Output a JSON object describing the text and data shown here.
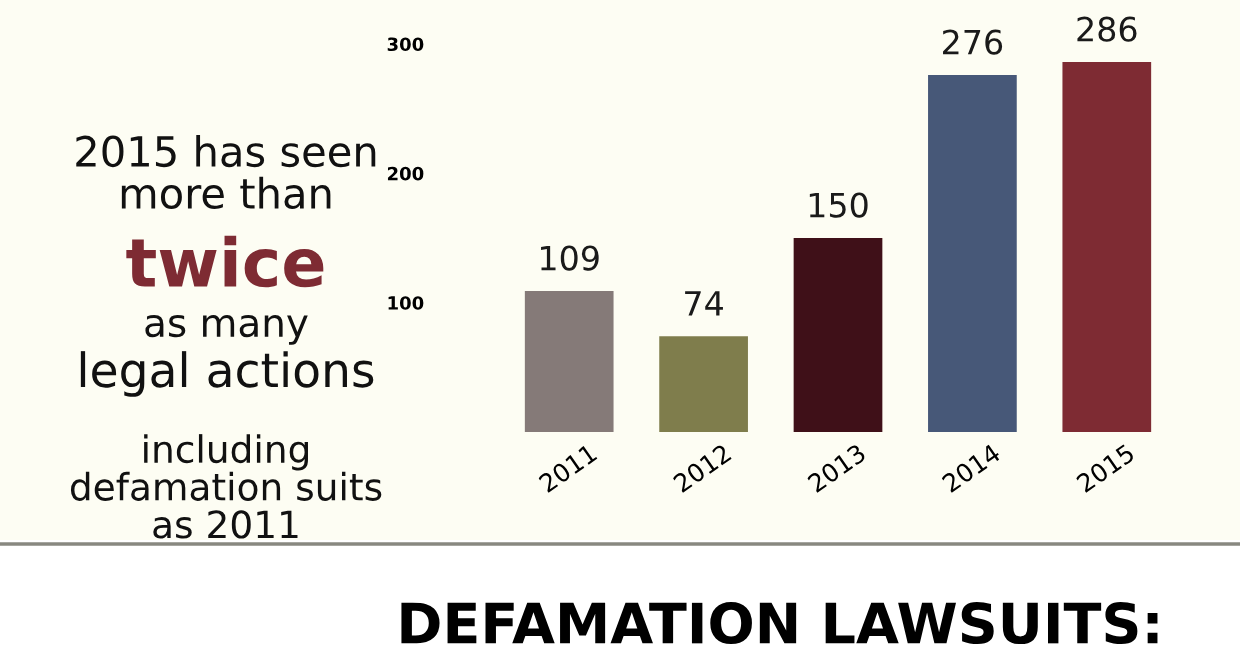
{
  "chart_data": {
    "type": "bar",
    "categories": [
      "2011",
      "2012",
      "2013",
      "2014",
      "2015"
    ],
    "values": [
      109,
      74,
      150,
      276,
      286
    ],
    "colors": [
      "#857a78",
      "#7f7d4c",
      "#3f1018",
      "#475878",
      "#7e2b33"
    ],
    "ylim": [
      0,
      300
    ],
    "yticks": [
      100,
      200,
      300
    ],
    "grid": false,
    "data_labels": true,
    "annotations": [
      "2015 has seen\nmore than",
      "twice",
      "as many",
      "legal actions",
      "including\ndefamation suits\nas 2011",
      "DEFAMATION LAWSUITS:"
    ]
  }
}
